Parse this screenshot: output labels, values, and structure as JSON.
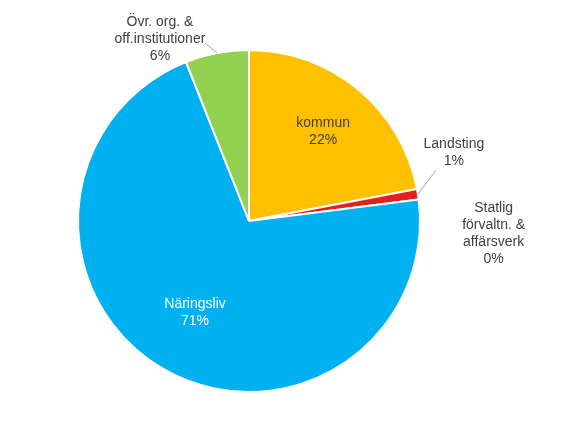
{
  "chart_data": {
    "type": "pie",
    "categories": [
      "kommun",
      "Landsting",
      "Statlig förvaltn. & affärsverk",
      "Näringsliv",
      "Övr. org. & off.institutioner"
    ],
    "values": [
      22,
      1,
      0,
      71,
      6
    ],
    "value_labels": [
      "22%",
      "1%",
      "0%",
      "71%",
      "6%"
    ],
    "colors": [
      "#ffc000",
      "#e3201b",
      "#7f7f7f",
      "#00b0f0",
      "#92d050"
    ],
    "data_labels": true
  }
}
